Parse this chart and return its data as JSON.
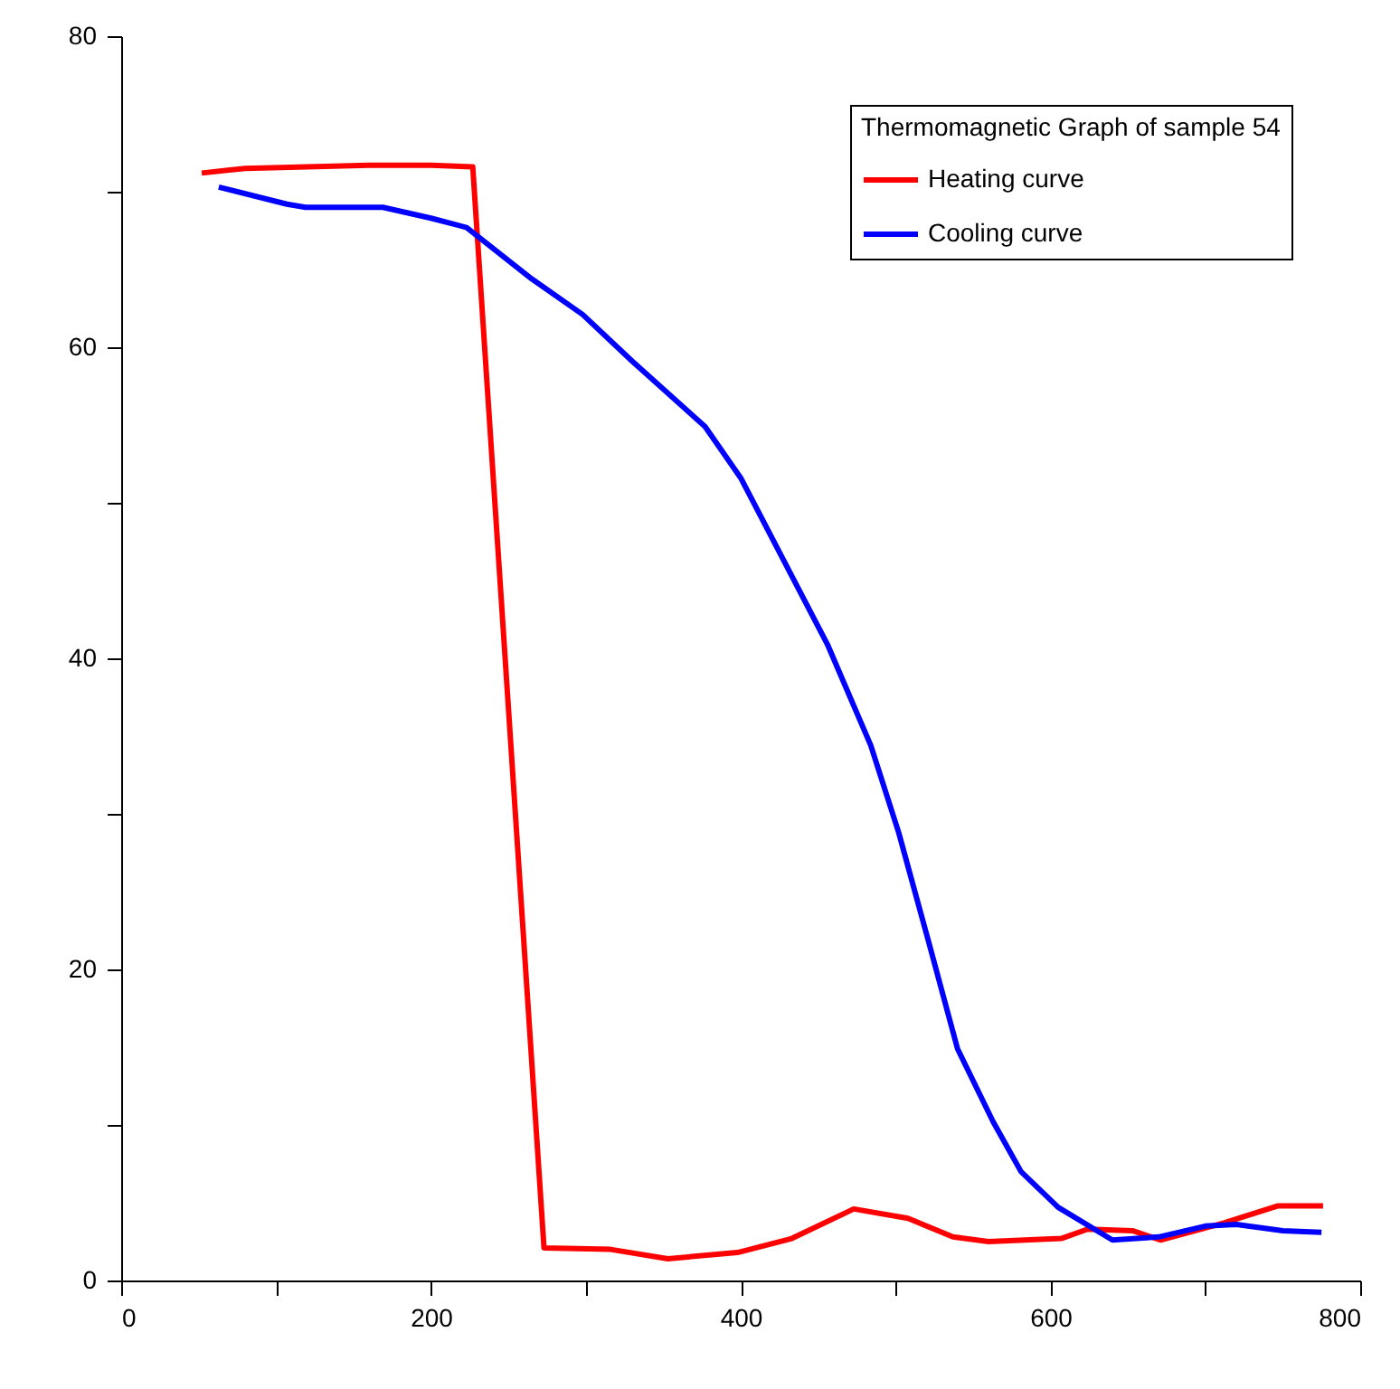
{
  "chart_data": {
    "type": "line",
    "legend_title": "Thermomagnetic Graph of sample 54",
    "legend": "top right",
    "line_style": "solid",
    "marker": "none",
    "grid": false,
    "xlim": [
      0,
      800
    ],
    "xticks": [
      0,
      {
        "value": 100,
        "label": null
      },
      200,
      {
        "value": 300,
        "label": null
      },
      400,
      {
        "value": 500,
        "label": null
      },
      600,
      {
        "value": 700,
        "label": null
      },
      800
    ],
    "ylim": [
      0,
      80
    ],
    "yticks": [
      0,
      {
        "value": 10,
        "label": null
      },
      20,
      {
        "value": 30,
        "label": null
      },
      40,
      {
        "value": 50,
        "label": null
      },
      60,
      {
        "value": 70,
        "label": null
      },
      80
    ],
    "series": [
      {
        "name": "Heating curve",
        "color": "#ff0000",
        "x": [
          52,
          80,
          120,
          160,
          200,
          227,
          273,
          316,
          353,
          398,
          433,
          473,
          508,
          537,
          560,
          607,
          624,
          653,
          671,
          712,
          747,
          776
        ],
        "values": [
          71.2,
          71.5,
          71.6,
          71.7,
          71.7,
          71.6,
          2.1,
          2.0,
          1.4,
          1.8,
          2.7,
          4.6,
          4.0,
          2.8,
          2.5,
          2.7,
          3.3,
          3.2,
          2.6,
          3.7,
          4.8,
          4.8
        ]
      },
      {
        "name": "Cooling curve",
        "color": "#0000ff",
        "x": [
          63,
          107,
          119,
          169,
          200,
          223,
          265,
          298,
          330,
          377,
          400,
          456,
          484,
          502,
          521,
          540,
          563,
          581,
          605,
          640,
          670,
          700,
          720,
          750,
          775
        ],
        "values": [
          70.3,
          69.2,
          69.0,
          69.0,
          68.3,
          67.7,
          64.4,
          62.1,
          59.1,
          54.9,
          51.6,
          40.9,
          34.4,
          28.8,
          21.9,
          14.9,
          10.2,
          7.0,
          4.7,
          2.6,
          2.8,
          3.5,
          3.6,
          3.2,
          3.1
        ]
      }
    ]
  }
}
